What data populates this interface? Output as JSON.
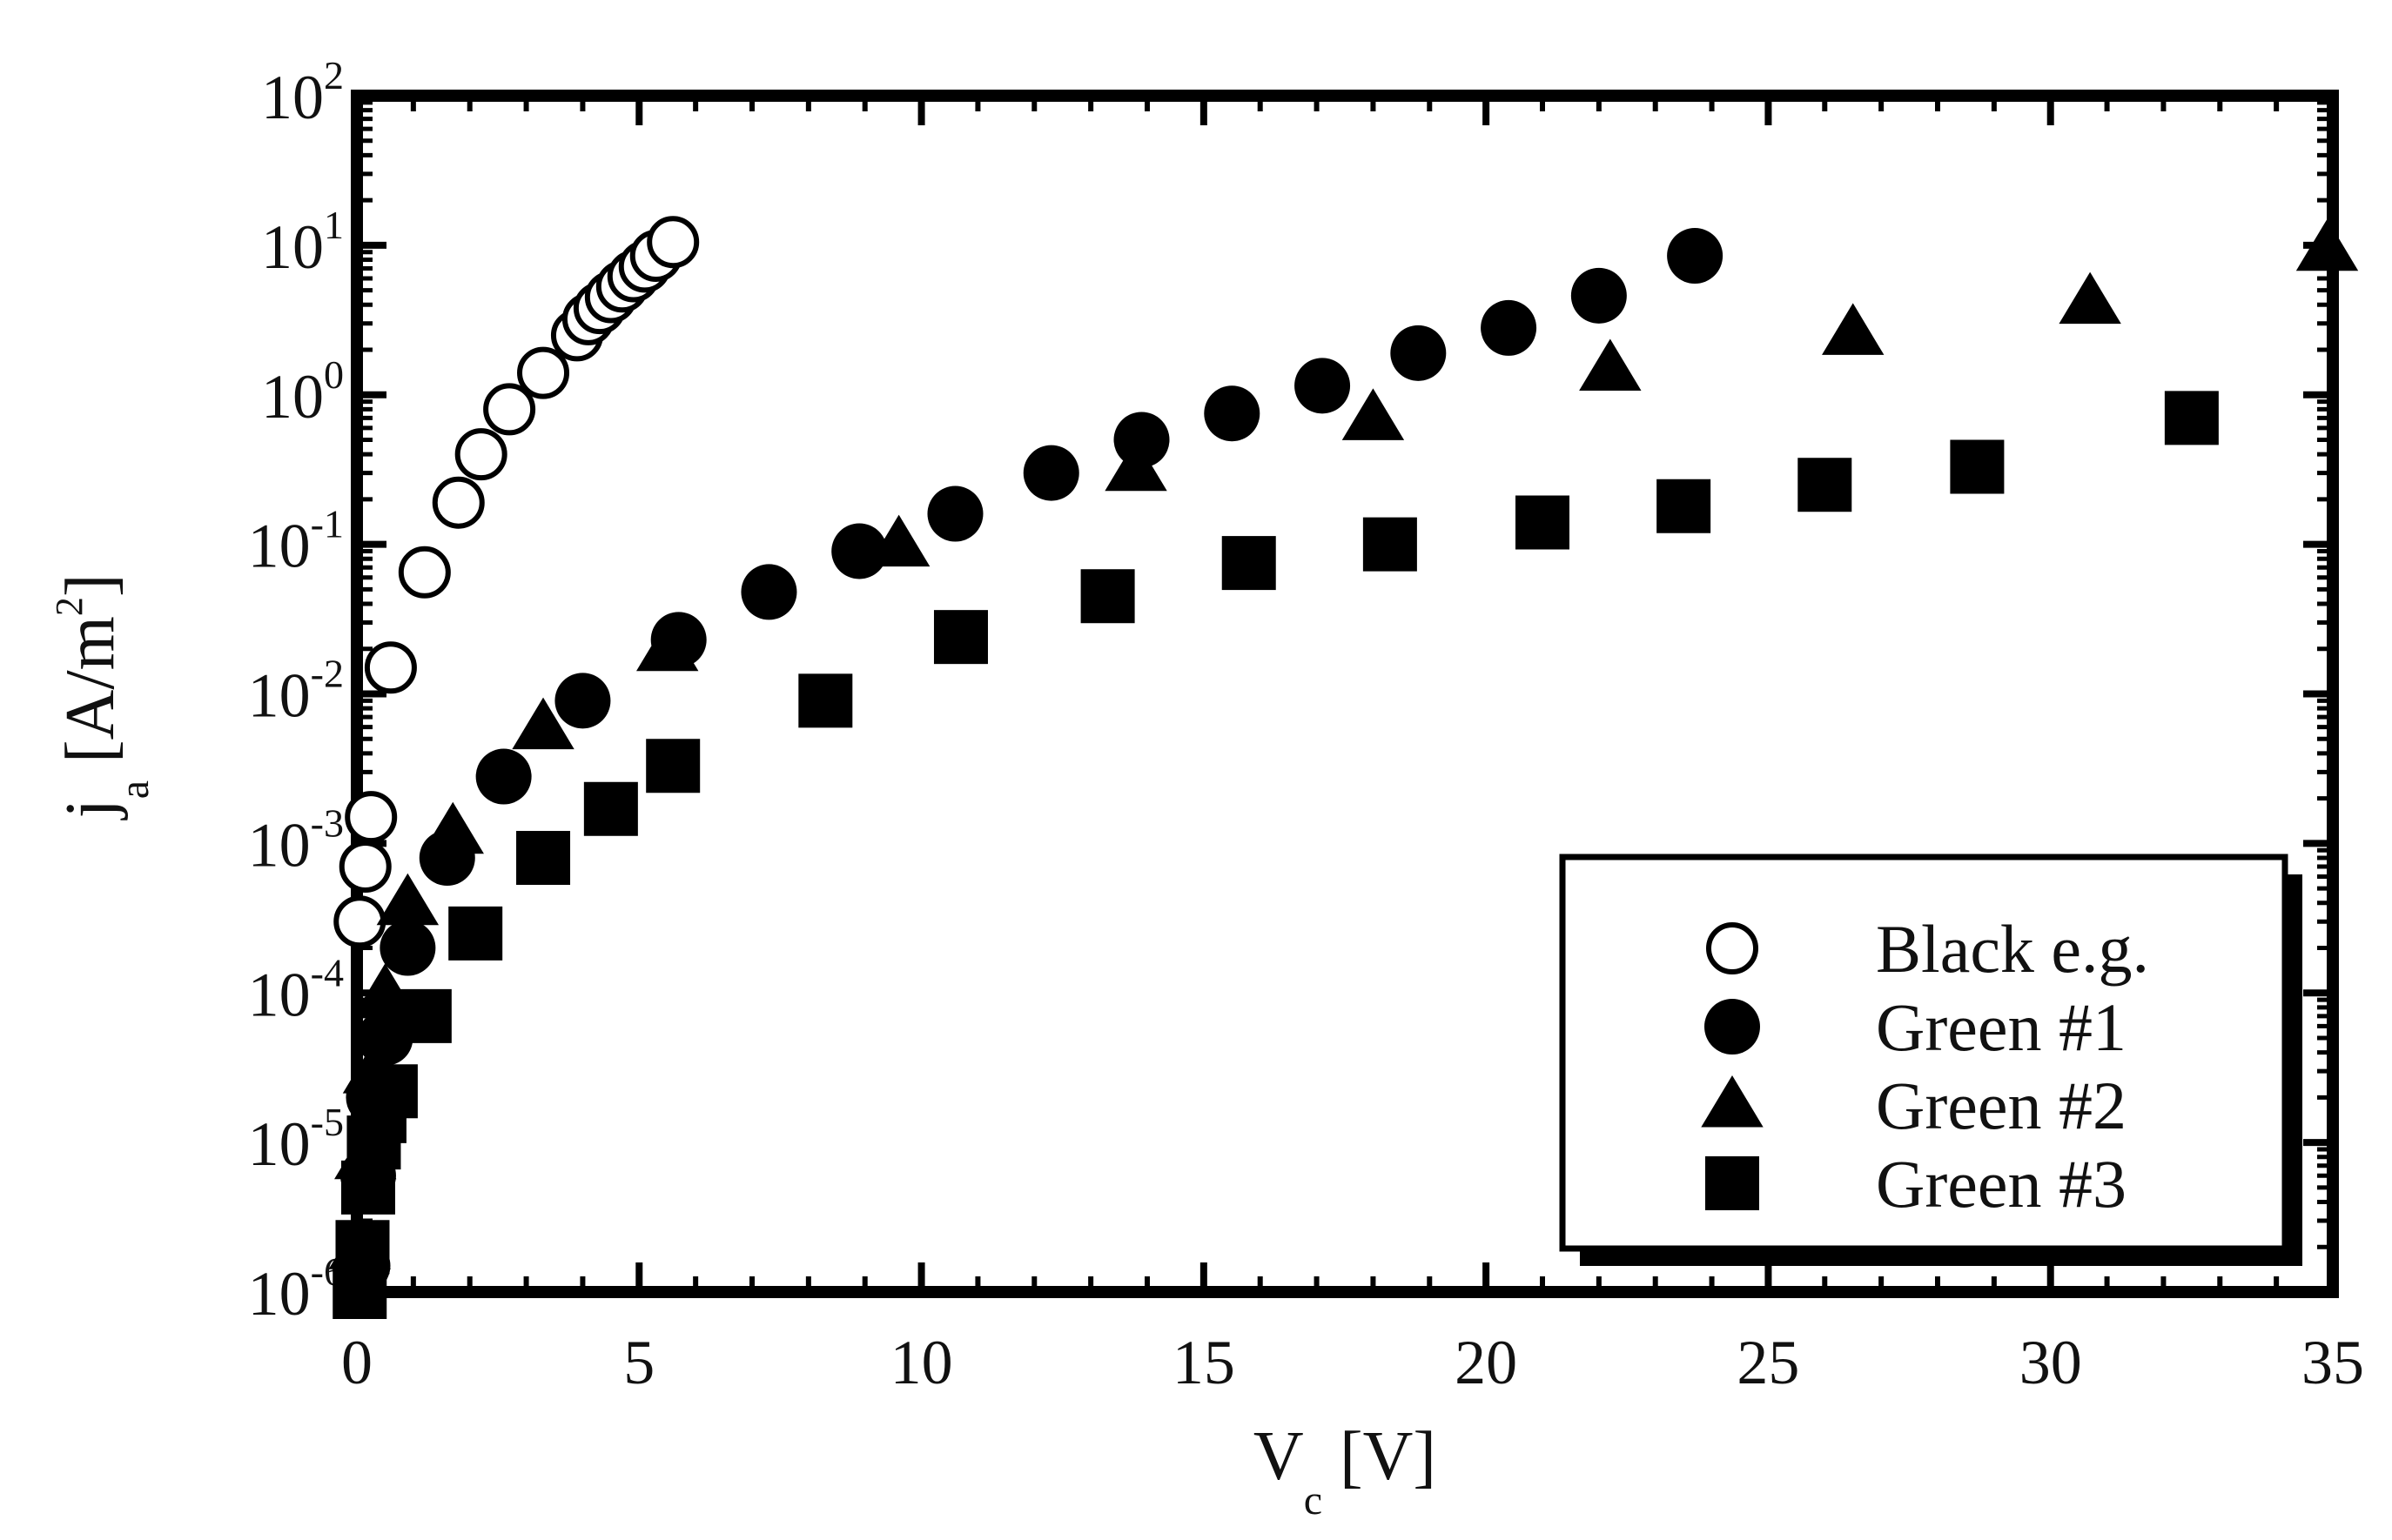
{
  "chart_data": {
    "type": "scatter",
    "title": "",
    "xlabel": {
      "main": "V",
      "sub": "c",
      "unit": " [V]"
    },
    "ylabel": {
      "main": "j",
      "sub": "a",
      "unit": " [A/m",
      "unit_sup": "2",
      "unit_close": "]"
    },
    "x_ticks": [
      0,
      5,
      10,
      15,
      20,
      25,
      30,
      35
    ],
    "x_tick_labels": [
      "0",
      "5",
      "10",
      "15",
      "20",
      "25",
      "30",
      "35"
    ],
    "xlim": [
      0,
      35
    ],
    "y_scale": "log",
    "ylim": [
      1e-06,
      100
    ],
    "y_tick_exponents": [
      "2",
      "1",
      "0",
      "-1",
      "-2",
      "-3",
      "-4",
      "-5",
      "-6"
    ],
    "y_tick_base": "10",
    "legend_position": "bottom-right",
    "series": [
      {
        "name": "Black e.g.",
        "marker": "circle-open",
        "points": [
          [
            0.05,
            0.0003
          ],
          [
            0.15,
            0.0007
          ],
          [
            0.25,
            0.0015
          ],
          [
            0.6,
            0.015
          ],
          [
            1.2,
            0.065
          ],
          [
            1.8,
            0.19
          ],
          [
            2.2,
            0.4
          ],
          [
            2.7,
            0.8
          ],
          [
            3.3,
            1.4
          ],
          [
            3.9,
            2.5
          ],
          [
            4.1,
            3.2
          ],
          [
            4.3,
            3.8
          ],
          [
            4.5,
            4.5
          ],
          [
            4.7,
            5.3
          ],
          [
            4.9,
            6.2
          ],
          [
            5.1,
            7.2
          ],
          [
            5.3,
            8.5
          ],
          [
            5.6,
            10.5
          ]
        ]
      },
      {
        "name": "Green #1",
        "marker": "circle-filled",
        "points": [
          [
            0.1,
            1.5e-06
          ],
          [
            0.2,
            6e-06
          ],
          [
            0.3,
            2e-05
          ],
          [
            0.5,
            5e-05
          ],
          [
            0.9,
            0.0002
          ],
          [
            1.6,
            0.0008
          ],
          [
            2.6,
            0.0028
          ],
          [
            4.0,
            0.009
          ],
          [
            5.7,
            0.023
          ],
          [
            7.3,
            0.048
          ],
          [
            8.9,
            0.09
          ],
          [
            10.6,
            0.16
          ],
          [
            12.3,
            0.3
          ],
          [
            13.9,
            0.5
          ],
          [
            15.5,
            0.75
          ],
          [
            17.1,
            1.15
          ],
          [
            18.8,
            1.9
          ],
          [
            20.4,
            2.8
          ],
          [
            22.0,
            4.6
          ],
          [
            23.7,
            8.5
          ]
        ]
      },
      {
        "name": "Green #2",
        "marker": "triangle-filled",
        "points": [
          [
            0.05,
            2e-06
          ],
          [
            0.15,
            8e-06
          ],
          [
            0.3,
            3e-05
          ],
          [
            0.5,
            0.0001
          ],
          [
            0.9,
            0.0004
          ],
          [
            1.7,
            0.0012
          ],
          [
            3.3,
            0.006
          ],
          [
            5.5,
            0.02
          ],
          [
            9.6,
            0.1
          ],
          [
            13.8,
            0.32
          ],
          [
            18.0,
            0.7
          ],
          [
            22.2,
            1.5
          ],
          [
            26.5,
            2.6
          ],
          [
            30.7,
            4.2
          ],
          [
            34.9,
            9.5
          ]
        ]
      },
      {
        "name": "Green #3",
        "marker": "square-filled",
        "points": [
          [
            0.05,
            1e-06
          ],
          [
            0.1,
            2e-06
          ],
          [
            0.2,
            5e-06
          ],
          [
            0.3,
            1e-05
          ],
          [
            0.4,
            1.5e-05
          ],
          [
            0.6,
            2.2e-05
          ],
          [
            1.2,
            7e-05
          ],
          [
            2.1,
            0.00025
          ],
          [
            3.3,
            0.0008
          ],
          [
            4.5,
            0.0017
          ],
          [
            5.6,
            0.0033
          ],
          [
            8.3,
            0.009
          ],
          [
            10.7,
            0.024
          ],
          [
            13.3,
            0.045
          ],
          [
            15.8,
            0.075
          ],
          [
            18.3,
            0.1
          ],
          [
            21.0,
            0.14
          ],
          [
            23.5,
            0.18
          ],
          [
            26.0,
            0.25
          ],
          [
            28.7,
            0.33
          ],
          [
            32.5,
            0.7
          ]
        ]
      }
    ]
  }
}
